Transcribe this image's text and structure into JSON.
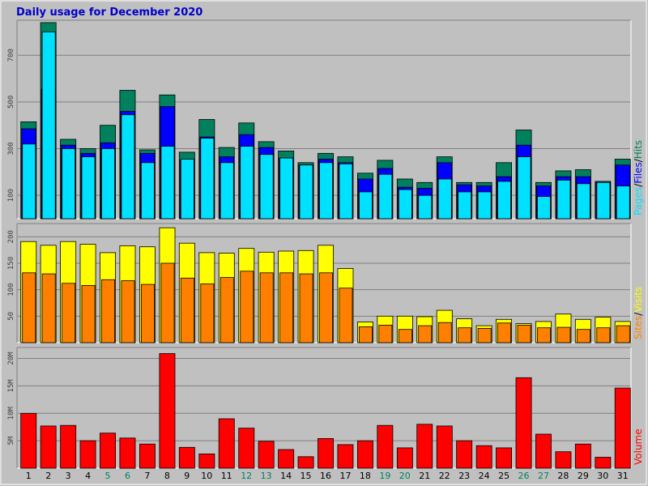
{
  "title": "Daily usage for December 2020",
  "colors": {
    "background": "#c0c0c0",
    "plot_background": "#c0c0c0",
    "hits": "#00805c",
    "files": "#0000ff",
    "pages": "#00e0ff",
    "visits": "#ffff00",
    "sites": "#ff8000",
    "volume": "#ff0000",
    "weekend_label": "#00805c",
    "weekday_label": "#000000"
  },
  "chart_data": [
    {
      "type": "bar",
      "title": "Daily usage for December 2020",
      "categories": [
        "1",
        "2",
        "3",
        "4",
        "5",
        "6",
        "7",
        "8",
        "9",
        "10",
        "11",
        "12",
        "13",
        "14",
        "15",
        "16",
        "17",
        "18",
        "19",
        "20",
        "21",
        "22",
        "23",
        "24",
        "25",
        "26",
        "27",
        "28",
        "29",
        "30",
        "31"
      ],
      "weekend_days": [
        "5",
        "6",
        "12",
        "13",
        "19",
        "20",
        "26",
        "27"
      ],
      "series": [
        {
          "name": "Hits",
          "values": [
            415,
            840,
            340,
            300,
            400,
            550,
            295,
            530,
            285,
            425,
            305,
            410,
            330,
            290,
            240,
            280,
            265,
            195,
            250,
            170,
            155,
            265,
            155,
            155,
            240,
            380,
            155,
            205,
            210,
            160,
            255
          ]
        },
        {
          "name": "Files",
          "values": [
            385,
            555,
            315,
            280,
            325,
            460,
            280,
            480,
            250,
            350,
            265,
            360,
            305,
            260,
            230,
            255,
            240,
            170,
            215,
            135,
            130,
            240,
            145,
            140,
            180,
            315,
            140,
            180,
            180,
            155,
            230
          ]
        },
        {
          "name": "Pages",
          "values": [
            320,
            800,
            300,
            265,
            300,
            445,
            240,
            310,
            255,
            345,
            240,
            310,
            275,
            260,
            230,
            240,
            235,
            115,
            190,
            125,
            100,
            170,
            115,
            115,
            160,
            265,
            95,
            165,
            150,
            155,
            140
          ]
        }
      ],
      "yticks": [
        100,
        300,
        500,
        700
      ],
      "ylim": [
        0,
        850
      ],
      "ylabel": "Pages/Files/Hits"
    },
    {
      "type": "bar",
      "categories": [
        "1",
        "2",
        "3",
        "4",
        "5",
        "6",
        "7",
        "8",
        "9",
        "10",
        "11",
        "12",
        "13",
        "14",
        "15",
        "16",
        "17",
        "18",
        "19",
        "20",
        "21",
        "22",
        "23",
        "24",
        "25",
        "26",
        "27",
        "28",
        "29",
        "30",
        "31"
      ],
      "series": [
        {
          "name": "Visits",
          "values": [
            191,
            184,
            191,
            186,
            170,
            183,
            181,
            217,
            188,
            170,
            169,
            178,
            171,
            173,
            174,
            184,
            140,
            39,
            50,
            50,
            49,
            61,
            45,
            32,
            44,
            36,
            40,
            54,
            44,
            48,
            40
          ]
        },
        {
          "name": "Sites",
          "values": [
            132,
            130,
            112,
            108,
            119,
            117,
            110,
            150,
            122,
            111,
            123,
            135,
            132,
            132,
            130,
            132,
            103,
            30,
            33,
            25,
            32,
            38,
            28,
            27,
            37,
            33,
            28,
            29,
            25,
            28,
            32
          ]
        }
      ],
      "yticks": [
        50,
        100,
        150,
        200
      ],
      "ylim": [
        0,
        225
      ],
      "ylabel": "Visits/Sites"
    },
    {
      "type": "bar",
      "categories": [
        "1",
        "2",
        "3",
        "4",
        "5",
        "6",
        "7",
        "8",
        "9",
        "10",
        "11",
        "12",
        "13",
        "14",
        "15",
        "16",
        "17",
        "18",
        "19",
        "20",
        "21",
        "22",
        "23",
        "24",
        "25",
        "26",
        "27",
        "28",
        "29",
        "30",
        "31"
      ],
      "series": [
        {
          "name": "Volume",
          "values": [
            10.0,
            7.7,
            7.8,
            5.0,
            6.4,
            5.5,
            4.4,
            20.9,
            3.8,
            2.6,
            9.0,
            7.3,
            4.9,
            3.4,
            2.1,
            5.4,
            4.3,
            5.0,
            7.8,
            3.7,
            8.0,
            7.7,
            5.0,
            4.1,
            3.7,
            16.5,
            6.2,
            3.0,
            4.4,
            2.0,
            14.6
          ]
        }
      ],
      "ytick_labels": [
        "5M",
        "10M",
        "15M",
        "20M"
      ],
      "yticks": [
        5,
        10,
        15,
        20
      ],
      "ylim": [
        0,
        22
      ],
      "ylabel": "Volume"
    }
  ]
}
